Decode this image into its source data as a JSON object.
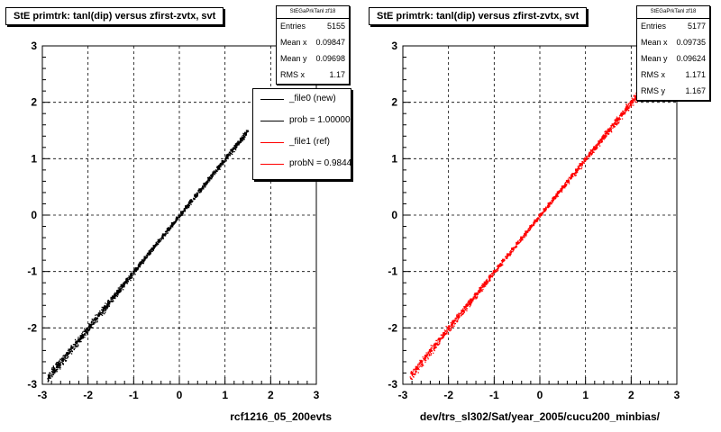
{
  "chart_data": [
    {
      "type": "scatter",
      "title": "StE primtrk: tanl(dip) versus zfirst-zvtx, svt",
      "xlabel": "rcf1216_05_200evts",
      "ylabel": "",
      "xlim": [
        -3,
        3
      ],
      "ylim": [
        -3,
        3
      ],
      "xticks": [
        "-3",
        "-2",
        "-1",
        "0",
        "1",
        "2",
        "3"
      ],
      "yticks": [
        "-3",
        "-2",
        "-1",
        "0",
        "1",
        "2",
        "3"
      ],
      "grid": true,
      "color": "#000000",
      "points_range": [
        -2.9,
        1.5
      ],
      "stats": {
        "header": "StEGaPrkTanl zf18",
        "rows": [
          {
            "label": "Entries",
            "value": "5155"
          },
          {
            "label": "Mean x",
            "value": "0.09847"
          },
          {
            "label": "Mean y",
            "value": "0.09698"
          },
          {
            "label": "RMS x",
            "value": "1.17"
          }
        ]
      },
      "legend": {
        "placement": "top-right",
        "items": [
          {
            "label": "_file0 (new)",
            "color": "#000000"
          },
          {
            "label": "prob = 1.000000",
            "color": "#000000"
          },
          {
            "label": "_file1 (ref)",
            "color": "#ff0000"
          },
          {
            "label": "probN = 0.984400",
            "color": "#ff0000"
          }
        ]
      }
    },
    {
      "type": "scatter",
      "title": "StE primtrk: tanl(dip) versus zfirst-zvtx, svt",
      "xlabel": "dev/trs_sl302/Sat/year_2005/cucu200_minbias/",
      "ylabel": "",
      "xlim": [
        -3,
        3
      ],
      "ylim": [
        -3,
        3
      ],
      "xticks": [
        "-3",
        "-2",
        "-1",
        "0",
        "1",
        "2",
        "3"
      ],
      "yticks": [
        "-3",
        "-2",
        "-1",
        "0",
        "1",
        "2",
        "3"
      ],
      "grid": true,
      "color": "#ff0000",
      "points_range": [
        -2.85,
        2.2
      ],
      "stats": {
        "header": "StEGaPrkTanl zf18",
        "rows": [
          {
            "label": "Entries",
            "value": "5177"
          },
          {
            "label": "Mean x",
            "value": "0.09735"
          },
          {
            "label": "Mean y",
            "value": "0.09624"
          },
          {
            "label": "RMS x",
            "value": "1.171"
          },
          {
            "label": "RMS y",
            "value": "1.167"
          }
        ]
      }
    }
  ]
}
